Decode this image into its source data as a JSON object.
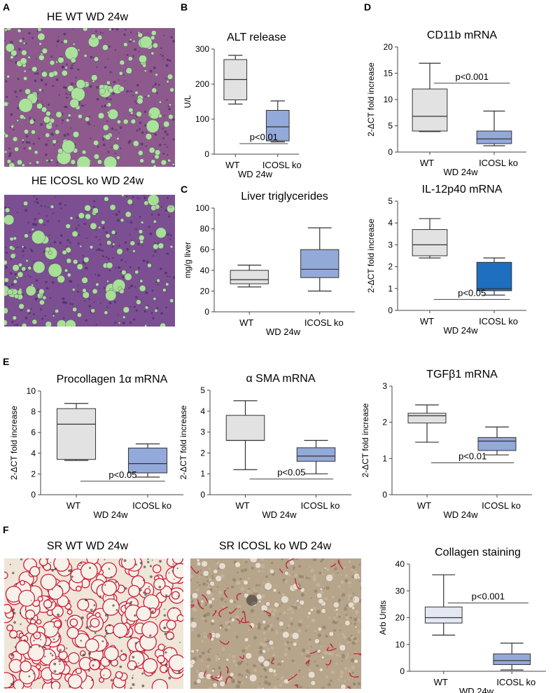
{
  "panel_letters": [
    "A",
    "B",
    "C",
    "D",
    "E",
    "F"
  ],
  "micrographs": {
    "he_wt": {
      "label": "HE WT WD 24w",
      "colors": {
        "bg": "#8e5a8e",
        "vacuole": "#a9e39a"
      }
    },
    "he_icosl": {
      "label": "HE ICOSL ko WD 24w",
      "colors": {
        "bg": "#7b4f91",
        "vacuole": "#a6df95"
      }
    },
    "sr_wt": {
      "label": "SR WT WD 24w",
      "colors": {
        "bg": "#efe5d8",
        "strand": "#cc1f3a"
      }
    },
    "sr_icosl": {
      "label": "SR ICOSL ko WD 24w",
      "colors": {
        "bg": "#b6a48b",
        "strand": "#c0243a"
      }
    }
  },
  "colors": {
    "wt_box": "#e2e2e2",
    "ko_box": "#93a9d9",
    "ko_box_dark": "#1e6fbf",
    "sr_wt_box": "#e3e8f2",
    "sr_ko_box": "#93a9d9"
  },
  "chart_data": [
    {
      "id": "alt",
      "type": "box",
      "title": "ALT release",
      "ylabel": "U/L",
      "ylim": [
        0,
        300
      ],
      "yticks": [
        0,
        100,
        200,
        300
      ],
      "categories": [
        "WT",
        "ICOSL ko"
      ],
      "group_label": "WD 24w",
      "series": [
        {
          "category": "WT",
          "min": 143,
          "q1": 155,
          "median": 213,
          "q3": 270,
          "max": 282
        },
        {
          "category": "ICOSL ko",
          "min": 35,
          "q1": 38,
          "median": 78,
          "q3": 125,
          "max": 152
        }
      ],
      "annotations": [
        {
          "text": "p<0.01",
          "y": 30
        }
      ]
    },
    {
      "id": "cd11b",
      "type": "box",
      "title": "CD11b mRNA",
      "ylabel": "2-ΔCT fold increase",
      "ylim": [
        0,
        20
      ],
      "yticks": [
        0,
        5,
        10,
        15,
        20
      ],
      "categories": [
        "WT",
        "ICOSL ko"
      ],
      "group_label": "WD 24w",
      "series": [
        {
          "category": "WT",
          "min": 3.9,
          "q1": 4.0,
          "median": 6.8,
          "q3": 12.0,
          "max": 16.9
        },
        {
          "category": "ICOSL ko",
          "min": 1.2,
          "q1": 1.6,
          "median": 2.5,
          "q3": 4.0,
          "max": 7.8
        }
      ],
      "annotations": [
        {
          "text": "p<0.001",
          "y": 13.1
        }
      ]
    },
    {
      "id": "tg",
      "type": "box",
      "title": "Liver triglycerides",
      "ylabel": "mg/g liver",
      "ylim": [
        0,
        100
      ],
      "yticks": [
        0,
        20,
        40,
        60,
        80,
        100
      ],
      "categories": [
        "WT",
        "ICOSL ko"
      ],
      "group_label": "WD 24w",
      "series": [
        {
          "category": "WT",
          "min": 24,
          "q1": 27,
          "median": 31,
          "q3": 40,
          "max": 45
        },
        {
          "category": "ICOSL ko",
          "min": 20,
          "q1": 33,
          "median": 41,
          "q3": 60,
          "max": 81
        }
      ],
      "annotations": []
    },
    {
      "id": "il12",
      "type": "box",
      "title": "IL-12p40 mRNA",
      "ylabel": "2-ΔCT fold increase",
      "ylim": [
        0,
        5
      ],
      "yticks": [
        0,
        1,
        2,
        3,
        4,
        5
      ],
      "categories": [
        "WT",
        "ICOSL ko"
      ],
      "group_label": "WD 24w",
      "series": [
        {
          "category": "WT",
          "min": 2.4,
          "q1": 2.5,
          "median": 3.0,
          "q3": 3.7,
          "max": 4.2
        },
        {
          "category": "ICOSL ko",
          "min": 0.7,
          "q1": 0.9,
          "median": 1.0,
          "q3": 2.2,
          "max": 2.4
        }
      ],
      "annotations": [
        {
          "text": "p<0.05",
          "y": 0.5
        }
      ]
    },
    {
      "id": "pc1a",
      "type": "box",
      "title": "Procollagen 1α mRNA",
      "ylabel": "2-ΔCT fold increase",
      "ylim": [
        0,
        10
      ],
      "yticks": [
        0,
        2,
        4,
        6,
        8,
        10
      ],
      "categories": [
        "WT",
        "ICOSL ko"
      ],
      "group_label": "WD 24w",
      "series": [
        {
          "category": "WT",
          "min": 3.3,
          "q1": 3.4,
          "median": 6.8,
          "q3": 8.3,
          "max": 8.8
        },
        {
          "category": "ICOSL ko",
          "min": 1.7,
          "q1": 2.1,
          "median": 3.0,
          "q3": 4.5,
          "max": 4.9
        }
      ],
      "annotations": [
        {
          "text": "p<0.05",
          "y": 1.3
        }
      ]
    },
    {
      "id": "asma",
      "type": "box",
      "title": "α SMA mRNA",
      "ylabel": "2-ΔCT fold increase",
      "ylim": [
        0,
        5
      ],
      "yticks": [
        0,
        1,
        2,
        3,
        4,
        5
      ],
      "categories": [
        "WT",
        "ICOSL ko"
      ],
      "group_label": "WD 24w",
      "series": [
        {
          "category": "WT",
          "min": 1.2,
          "q1": 2.6,
          "median": 2.6,
          "q3": 3.8,
          "max": 4.5
        },
        {
          "category": "ICOSL ko",
          "min": 1.0,
          "q1": 1.6,
          "median": 1.85,
          "q3": 2.25,
          "max": 2.6
        }
      ],
      "annotations": [
        {
          "text": "p<0.05",
          "y": 0.75
        }
      ]
    },
    {
      "id": "tgfb1",
      "type": "box",
      "title": "TGFβ1 mRNA",
      "ylabel": "2-ΔCT fold increase",
      "ylim": [
        0,
        3
      ],
      "yticks": [
        0,
        1,
        2,
        3
      ],
      "categories": [
        "WT",
        "ICOSL ko"
      ],
      "group_label": "WD 24w",
      "series": [
        {
          "category": "WT",
          "min": 1.45,
          "q1": 1.98,
          "median": 2.18,
          "q3": 2.25,
          "max": 2.48
        },
        {
          "category": "ICOSL ko",
          "min": 1.1,
          "q1": 1.22,
          "median": 1.48,
          "q3": 1.58,
          "max": 1.87
        }
      ],
      "annotations": [
        {
          "text": "p<0.01",
          "y": 0.88
        }
      ]
    },
    {
      "id": "coll",
      "type": "box",
      "title": "Collagen staining",
      "ylabel": "Arb Units",
      "ylim": [
        0,
        40
      ],
      "yticks": [
        0,
        10,
        20,
        30,
        40
      ],
      "categories": [
        "WT",
        "ICOSL ko"
      ],
      "group_label": "WD 24w",
      "series": [
        {
          "category": "WT",
          "min": 13.5,
          "q1": 18,
          "median": 20,
          "q3": 24,
          "max": 36
        },
        {
          "category": "ICOSL ko",
          "min": 0.5,
          "q1": 2.5,
          "median": 4.0,
          "q3": 6.5,
          "max": 10.5
        }
      ],
      "annotations": [
        {
          "text": "p<0.001",
          "y": 25.5
        }
      ]
    }
  ]
}
